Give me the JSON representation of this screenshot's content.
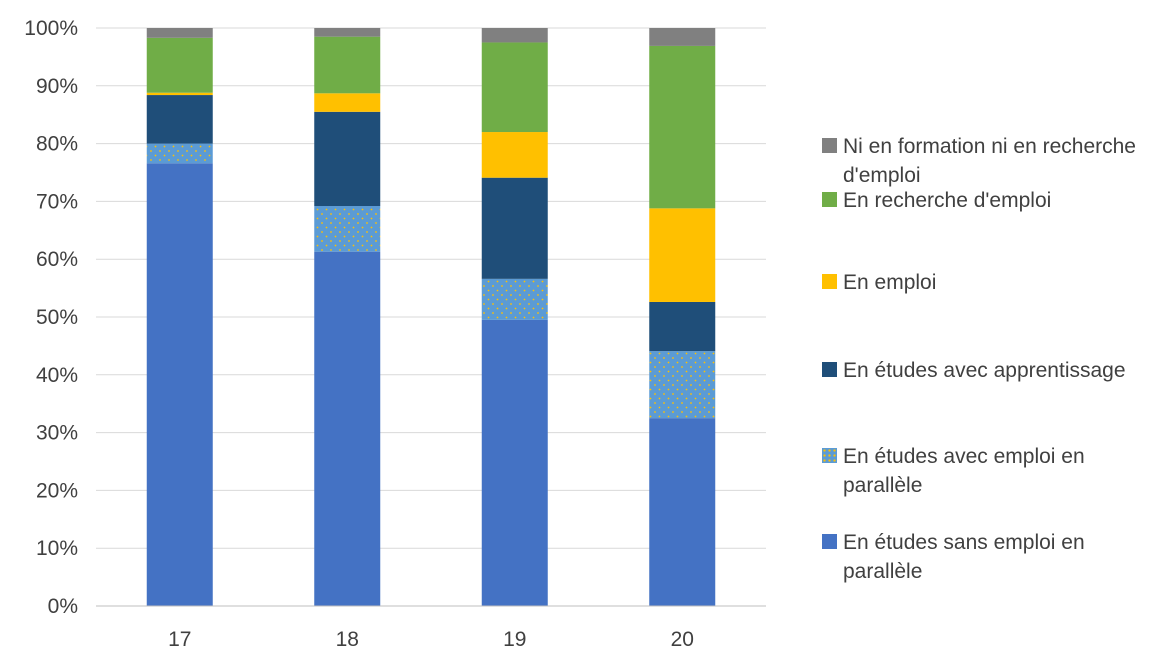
{
  "chart_data": {
    "type": "bar",
    "stacked": true,
    "categories": [
      "17",
      "18",
      "19",
      "20"
    ],
    "ylim": [
      0,
      100
    ],
    "y_ticks": [
      "0%",
      "10%",
      "20%",
      "30%",
      "40%",
      "50%",
      "60%",
      "70%",
      "80%",
      "90%",
      "100%"
    ],
    "grid": true,
    "legend_position": "right",
    "title": "",
    "xlabel": "",
    "ylabel": "",
    "series": [
      {
        "name": "En études sans emploi en parallèle",
        "color": "#4472C4",
        "pattern": "none",
        "values": [
          76.6,
          61.3,
          49.5,
          32.5
        ]
      },
      {
        "name": "En études avec emploi en parallèle",
        "color": "#5B9BD5",
        "pattern": "dots",
        "values": [
          3.4,
          7.9,
          7.1,
          11.6
        ]
      },
      {
        "name": "En études avec apprentissage",
        "color": "#1F4E79",
        "pattern": "none",
        "values": [
          8.4,
          16.3,
          17.5,
          8.5
        ]
      },
      {
        "name": "En emploi",
        "color": "#FFC000",
        "pattern": "none",
        "values": [
          0.4,
          3.2,
          7.9,
          16.2
        ]
      },
      {
        "name": "En recherche d'emploi",
        "color": "#70AD47",
        "pattern": "none",
        "values": [
          9.5,
          9.8,
          15.5,
          28.1
        ]
      },
      {
        "name": "Ni en formation ni en recherche d'emploi",
        "color": "#808080",
        "pattern": "none",
        "values": [
          1.7,
          1.5,
          2.5,
          3.1
        ]
      }
    ]
  }
}
